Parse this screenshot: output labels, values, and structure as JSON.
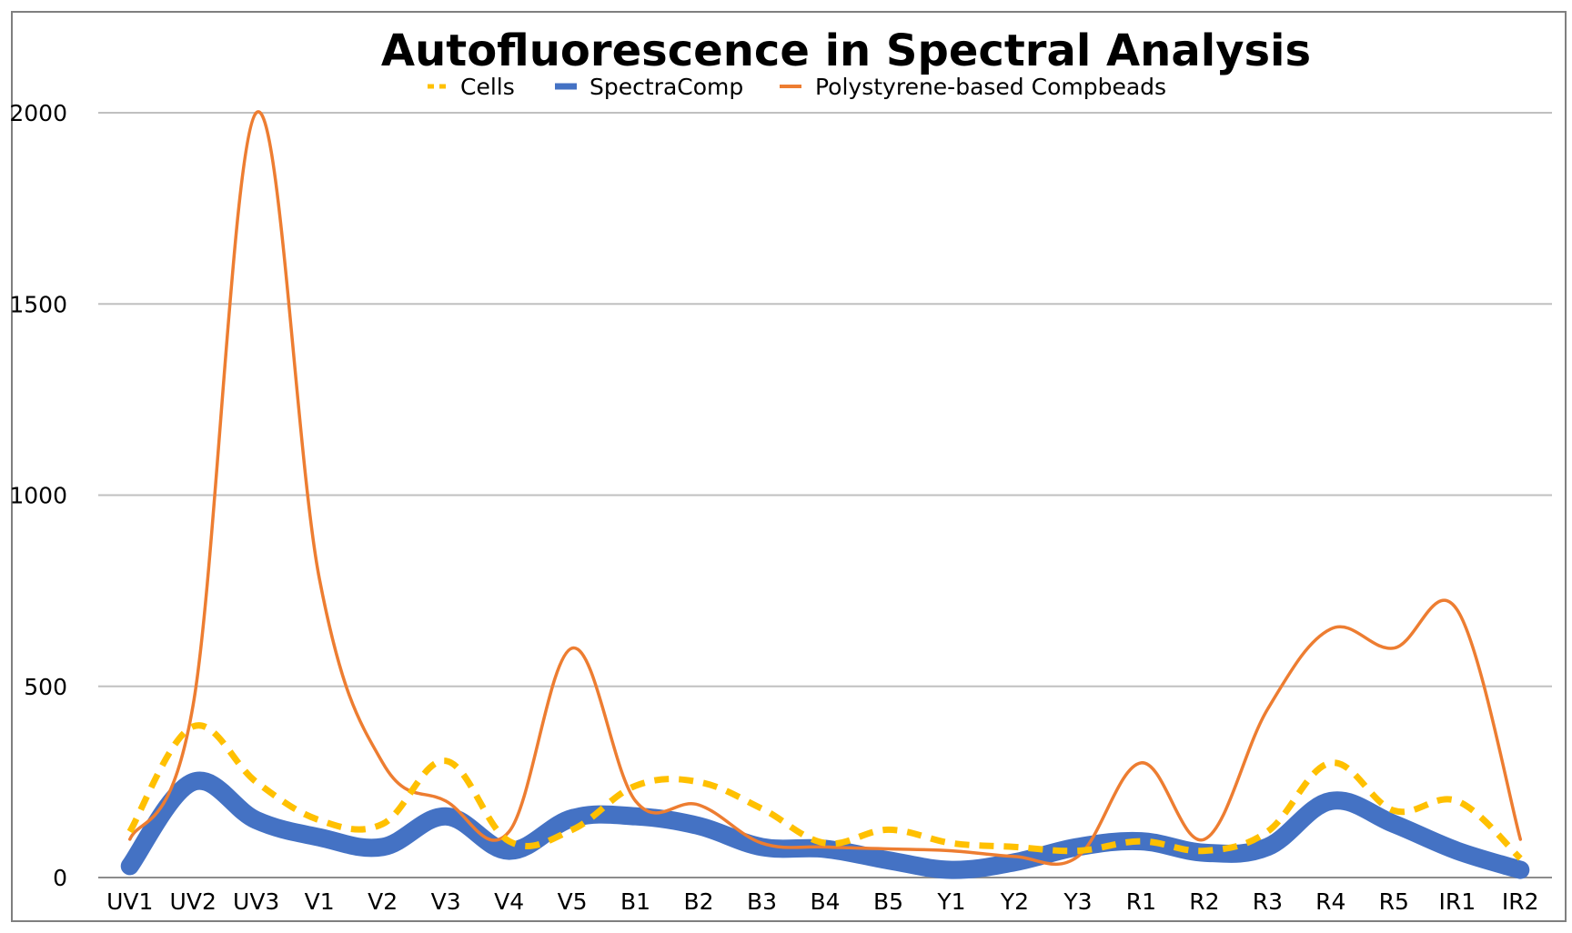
{
  "chart_data": {
    "type": "line",
    "title": "Autofluorescence in Spectral Analysis",
    "xlabel": "",
    "ylabel": "",
    "categories": [
      "UV1",
      "UV2",
      "UV3",
      "V1",
      "V2",
      "V3",
      "V4",
      "V5",
      "B1",
      "B2",
      "B3",
      "B4",
      "B5",
      "Y1",
      "Y2",
      "Y3",
      "R1",
      "R2",
      "R3",
      "R4",
      "R5",
      "IR1",
      "IR2"
    ],
    "ylim": [
      0,
      2000
    ],
    "yticks": [
      "0",
      "500",
      "1000",
      "1500",
      "2000"
    ],
    "grid": true,
    "legend_position": "top",
    "series": [
      {
        "name": "Cells",
        "style": "dashed",
        "color": "#FFC000",
        "values": [
          120,
          395,
          250,
          150,
          140,
          305,
          95,
          125,
          240,
          250,
          180,
          90,
          125,
          90,
          80,
          70,
          95,
          70,
          120,
          300,
          175,
          200,
          50
        ]
      },
      {
        "name": "SpectraComp",
        "style": "thick",
        "color": "#4472C4",
        "values": [
          30,
          250,
          150,
          105,
          80,
          160,
          70,
          155,
          160,
          135,
          80,
          75,
          45,
          20,
          40,
          80,
          95,
          65,
          80,
          200,
          140,
          70,
          20
        ]
      },
      {
        "name": "Polystyrene-based Compbeads",
        "style": "thin",
        "color": "#ED7D31",
        "values": [
          100,
          450,
          2000,
          780,
          300,
          200,
          120,
          600,
          200,
          190,
          90,
          80,
          75,
          70,
          55,
          55,
          300,
          100,
          440,
          650,
          600,
          700,
          100
        ]
      }
    ]
  }
}
